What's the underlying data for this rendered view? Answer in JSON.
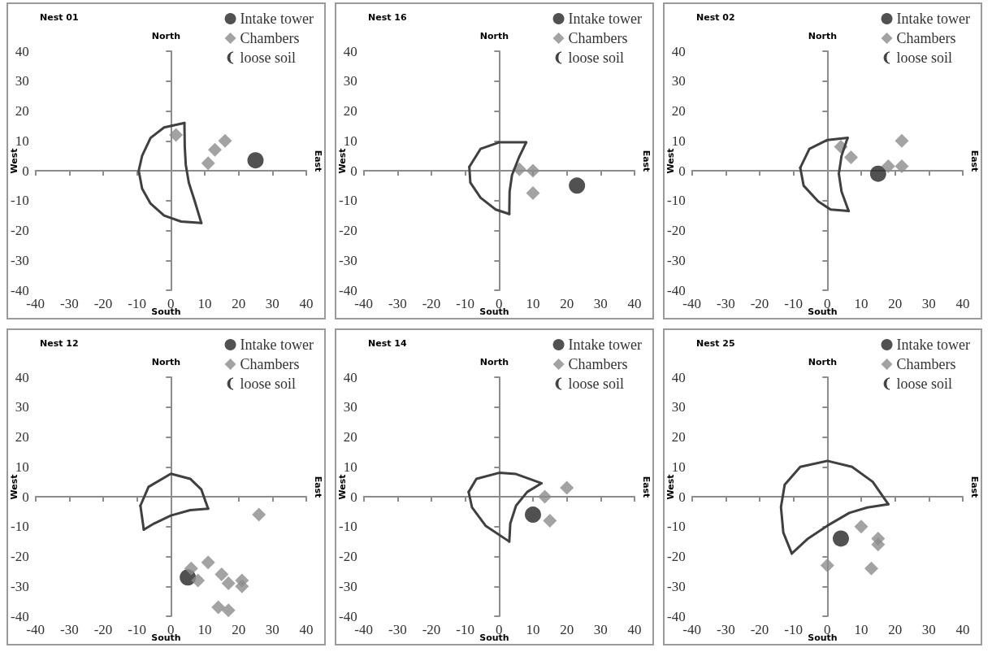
{
  "chart_data": [
    {
      "type": "scatter",
      "title": "Nest 01",
      "annotations": [
        "North",
        "South",
        "West",
        "East"
      ],
      "xlim": [
        -40,
        40
      ],
      "ylim": [
        -40,
        40
      ],
      "xticks": [
        -40,
        -30,
        -20,
        -10,
        0,
        10,
        20,
        30,
        40
      ],
      "yticks": [
        -40,
        -30,
        -20,
        -10,
        0,
        10,
        20,
        30,
        40
      ],
      "legend": "top right",
      "series": [
        {
          "name": "Intake tower",
          "color": "#262626",
          "marker": "circle",
          "x": [
            25
          ],
          "values": [
            3.5
          ]
        },
        {
          "name": "Chambers",
          "color": "#8c8c8c",
          "marker": "diamond",
          "x": [
            1.5,
            11,
            13,
            16
          ],
          "values": [
            12,
            2.5,
            7,
            10
          ]
        },
        {
          "name": "loose soil",
          "type": "line",
          "marker": "none",
          "color": "#404040",
          "x": [
            4,
            -2,
            -6,
            -8.5,
            -9.5,
            -8.5,
            -6,
            -2,
            3,
            9
          ],
          "values": [
            16,
            14.5,
            11,
            5,
            0,
            -6,
            -11,
            -15,
            -17,
            -17.5
          ]
        },
        {
          "type": "line",
          "marker": "none",
          "color": "#404040",
          "x": [
            9,
            7,
            5.3,
            4.4,
            4.1,
            4
          ],
          "values": [
            -17.5,
            -10,
            -4,
            2,
            8,
            16
          ]
        }
      ]
    },
    {
      "type": "scatter",
      "title": "Nest 16",
      "annotations": [
        "North",
        "South",
        "West",
        "East"
      ],
      "xlim": [
        -40,
        40
      ],
      "ylim": [
        -40,
        40
      ],
      "xticks": [
        -40,
        -30,
        -20,
        -10,
        0,
        10,
        20,
        30,
        40
      ],
      "yticks": [
        -40,
        -30,
        -20,
        -10,
        0,
        10,
        20,
        30,
        40
      ],
      "legend": "top right",
      "series": [
        {
          "name": "Intake tower",
          "color": "#262626",
          "marker": "circle",
          "x": [
            23
          ],
          "values": [
            -5
          ]
        },
        {
          "name": "Chambers",
          "color": "#8c8c8c",
          "marker": "diamond",
          "x": [
            6,
            10,
            10
          ],
          "values": [
            0.5,
            0,
            -7.5
          ]
        },
        {
          "name": "loose soil",
          "type": "line",
          "marker": "none",
          "color": "#404040",
          "x": [
            8,
            0,
            -5.5,
            -8.8
          ],
          "values": [
            9.5,
            9.5,
            7.3,
            1.3
          ]
        },
        {
          "type": "line",
          "marker": "none",
          "color": "#404040",
          "x": [
            -8.8,
            -8.5,
            -5.5,
            -1,
            3
          ],
          "values": [
            1.3,
            -4,
            -9,
            -13,
            -14.5
          ]
        },
        {
          "type": "line",
          "marker": "none",
          "color": "#404040",
          "x": [
            3,
            3.1,
            3.8,
            5.8,
            8
          ],
          "values": [
            -14.5,
            -7,
            -1.5,
            4.3,
            9.5
          ]
        }
      ]
    },
    {
      "type": "scatter",
      "title": "Nest 02",
      "annotations": [
        "North",
        "South",
        "West",
        "East"
      ],
      "xlim": [
        -40,
        40
      ],
      "ylim": [
        -40,
        40
      ],
      "xticks": [
        -40,
        -30,
        -20,
        -10,
        0,
        10,
        20,
        30,
        40
      ],
      "yticks": [
        -40,
        -30,
        -20,
        -10,
        0,
        10,
        20,
        30,
        40
      ],
      "legend": "top right",
      "series": [
        {
          "name": "Intake tower",
          "color": "#262626",
          "marker": "circle",
          "x": [
            15
          ],
          "values": [
            -1
          ]
        },
        {
          "name": "Chambers",
          "color": "#8c8c8c",
          "marker": "diamond",
          "x": [
            4,
            7,
            18,
            22,
            22
          ],
          "values": [
            8,
            4.5,
            1.5,
            10,
            1.5
          ]
        },
        {
          "name": "loose soil",
          "type": "line",
          "marker": "none",
          "color": "#404040",
          "x": [
            6,
            0,
            -5.3,
            -8
          ],
          "values": [
            11,
            10.3,
            7.3,
            1
          ]
        },
        {
          "type": "line",
          "marker": "none",
          "color": "#404040",
          "x": [
            -8,
            -7,
            -2.7,
            1,
            6.3
          ],
          "values": [
            1,
            -5,
            -10.3,
            -13,
            -13.5
          ]
        },
        {
          "type": "line",
          "marker": "none",
          "color": "#404040",
          "x": [
            6.3,
            4.2,
            3.4,
            4.2,
            6
          ],
          "values": [
            -13.5,
            -7,
            -1,
            5,
            11
          ]
        }
      ]
    },
    {
      "type": "scatter",
      "title": "Nest 12",
      "annotations": [
        "North",
        "South",
        "West",
        "East"
      ],
      "xlim": [
        -40,
        40
      ],
      "ylim": [
        -40,
        40
      ],
      "xticks": [
        -40,
        -30,
        -20,
        -10,
        0,
        10,
        20,
        30,
        40
      ],
      "yticks": [
        -40,
        -30,
        -20,
        -10,
        0,
        10,
        20,
        30,
        40
      ],
      "legend": "top right",
      "series": [
        {
          "name": "Intake tower",
          "color": "#262626",
          "marker": "circle",
          "x": [
            5
          ],
          "values": [
            -27
          ]
        },
        {
          "name": "Chambers",
          "color": "#8c8c8c",
          "marker": "diamond",
          "x": [
            26,
            6,
            8,
            11,
            15,
            17,
            21,
            21,
            14,
            17
          ],
          "values": [
            -6,
            -24,
            -28,
            -22,
            -26,
            -29,
            -28,
            -30,
            -37,
            -38
          ]
        },
        {
          "name": "loose soil",
          "type": "line",
          "marker": "none",
          "color": "#404040",
          "x": [
            -8,
            -9
          ],
          "values": [
            -11,
            -3
          ]
        },
        {
          "type": "line",
          "marker": "none",
          "color": "#404040",
          "x": [
            -9,
            -6.6,
            0,
            5.7,
            9,
            11
          ],
          "values": [
            -3,
            3.3,
            7.7,
            6,
            2.4,
            -4
          ]
        },
        {
          "type": "line",
          "marker": "none",
          "color": "#404040",
          "x": [
            11,
            5.7,
            0,
            -5,
            -8
          ],
          "values": [
            -4,
            -4.5,
            -6.3,
            -9,
            -11
          ]
        }
      ]
    },
    {
      "type": "scatter",
      "title": "Nest 14",
      "annotations": [
        "North",
        "South",
        "West",
        "East"
      ],
      "xlim": [
        -40,
        40
      ],
      "ylim": [
        -40,
        40
      ],
      "xticks": [
        -40,
        -30,
        -20,
        -10,
        0,
        10,
        20,
        30,
        40
      ],
      "yticks": [
        -40,
        -30,
        -20,
        -10,
        0,
        10,
        20,
        30,
        40
      ],
      "legend": "top right",
      "series": [
        {
          "name": "Intake tower",
          "color": "#262626",
          "marker": "circle",
          "x": [
            10
          ],
          "values": [
            -6
          ]
        },
        {
          "name": "Chambers",
          "color": "#8c8c8c",
          "marker": "diamond",
          "x": [
            13.5,
            15,
            20
          ],
          "values": [
            0,
            -8,
            3
          ]
        },
        {
          "name": "loose soil",
          "type": "line",
          "marker": "none",
          "color": "#404040",
          "x": [
            12.5,
            5,
            0,
            -6.7,
            -9
          ],
          "values": [
            4.5,
            7.6,
            8,
            6,
            1.6
          ]
        },
        {
          "type": "line",
          "marker": "none",
          "color": "#404040",
          "x": [
            -9,
            -8,
            -4,
            3
          ],
          "values": [
            1.6,
            -3.6,
            -9.7,
            -15
          ]
        },
        {
          "type": "line",
          "marker": "none",
          "color": "#404040",
          "x": [
            3,
            3.3,
            5,
            8.3,
            12.5
          ],
          "values": [
            -15,
            -9,
            -3,
            1.6,
            4.5
          ]
        }
      ]
    },
    {
      "type": "scatter",
      "title": "Nest 25",
      "annotations": [
        "North",
        "South",
        "West",
        "East"
      ],
      "xlim": [
        -40,
        40
      ],
      "ylim": [
        -40,
        40
      ],
      "xticks": [
        -40,
        -30,
        -20,
        -10,
        0,
        10,
        20,
        30,
        40
      ],
      "yticks": [
        -40,
        -30,
        -20,
        -10,
        0,
        10,
        20,
        30,
        40
      ],
      "legend": "top right",
      "series": [
        {
          "name": "Intake tower",
          "color": "#262626",
          "marker": "circle",
          "x": [
            4
          ],
          "values": [
            -14
          ]
        },
        {
          "name": "Chambers",
          "color": "#8c8c8c",
          "marker": "diamond",
          "x": [
            10,
            15,
            15,
            13,
            0
          ],
          "values": [
            -10,
            -14,
            -16,
            -24,
            -23
          ]
        },
        {
          "name": "loose soil",
          "type": "line",
          "marker": "none",
          "color": "#404040",
          "x": [
            18,
            13.4,
            7.3,
            0,
            -8,
            -12.6,
            -13.7,
            -13,
            -10.5
          ],
          "values": [
            -2.5,
            5,
            10,
            12,
            10,
            4,
            -3.5,
            -12,
            -19
          ]
        },
        {
          "type": "line",
          "marker": "none",
          "color": "#404040",
          "x": [
            -10.5,
            -5.7,
            0,
            6.5,
            11.8,
            18
          ],
          "values": [
            -19,
            -14,
            -9.7,
            -5.4,
            -3.6,
            -2.5
          ]
        }
      ]
    }
  ]
}
